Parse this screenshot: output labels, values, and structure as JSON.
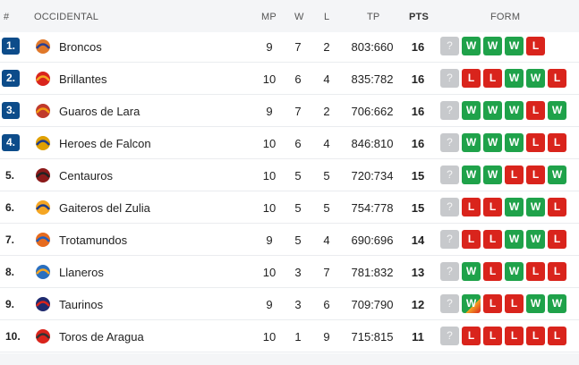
{
  "header": {
    "rank": "#",
    "group": "OCCIDENTAL",
    "mp": "MP",
    "w": "W",
    "l": "L",
    "tp": "TP",
    "pts": "PTS",
    "form": "FORM"
  },
  "colors": {
    "badge": "#0d4c8a",
    "win": "#1fa24a",
    "loss": "#d9241c",
    "next": "#c7c9cc"
  },
  "rows": [
    {
      "rank": "1.",
      "team": "Broncos",
      "mp": "9",
      "w": "7",
      "l": "2",
      "tp": "803:660",
      "pts": "16",
      "form": [
        "?",
        "W",
        "W",
        "W",
        "L"
      ],
      "badge": true
    },
    {
      "rank": "2.",
      "team": "Brillantes",
      "mp": "10",
      "w": "6",
      "l": "4",
      "tp": "835:782",
      "pts": "16",
      "form": [
        "?",
        "L",
        "L",
        "W",
        "W",
        "L"
      ],
      "badge": true
    },
    {
      "rank": "3.",
      "team": "Guaros de Lara",
      "mp": "9",
      "w": "7",
      "l": "2",
      "tp": "706:662",
      "pts": "16",
      "form": [
        "?",
        "W",
        "W",
        "W",
        "L",
        "W"
      ],
      "badge": true
    },
    {
      "rank": "4.",
      "team": "Heroes de Falcon",
      "mp": "10",
      "w": "6",
      "l": "4",
      "tp": "846:810",
      "pts": "16",
      "form": [
        "?",
        "W",
        "W",
        "W",
        "L",
        "L"
      ],
      "badge": true
    },
    {
      "rank": "5.",
      "team": "Centauros",
      "mp": "10",
      "w": "5",
      "l": "5",
      "tp": "720:734",
      "pts": "15",
      "form": [
        "?",
        "W",
        "W",
        "L",
        "L",
        "W"
      ],
      "badge": false
    },
    {
      "rank": "6.",
      "team": "Gaiteros del Zulia",
      "mp": "10",
      "w": "5",
      "l": "5",
      "tp": "754:778",
      "pts": "15",
      "form": [
        "?",
        "L",
        "L",
        "W",
        "W",
        "L"
      ],
      "badge": false
    },
    {
      "rank": "7.",
      "team": "Trotamundos",
      "mp": "9",
      "w": "5",
      "l": "4",
      "tp": "690:696",
      "pts": "14",
      "form": [
        "?",
        "L",
        "L",
        "W",
        "W",
        "L"
      ],
      "badge": false
    },
    {
      "rank": "8.",
      "team": "Llaneros",
      "mp": "10",
      "w": "3",
      "l": "7",
      "tp": "781:832",
      "pts": "13",
      "form": [
        "?",
        "W",
        "L",
        "W",
        "L",
        "L"
      ],
      "badge": false
    },
    {
      "rank": "9.",
      "team": "Taurinos",
      "mp": "9",
      "w": "3",
      "l": "6",
      "tp": "709:790",
      "pts": "12",
      "form": [
        "?",
        "W",
        "L",
        "L",
        "W",
        "W"
      ],
      "badge": false
    },
    {
      "rank": "10.",
      "team": "Toros de Aragua",
      "mp": "10",
      "w": "1",
      "l": "9",
      "tp": "715:815",
      "pts": "11",
      "form": [
        "?",
        "L",
        "L",
        "L",
        "L",
        "L"
      ],
      "badge": false
    }
  ]
}
